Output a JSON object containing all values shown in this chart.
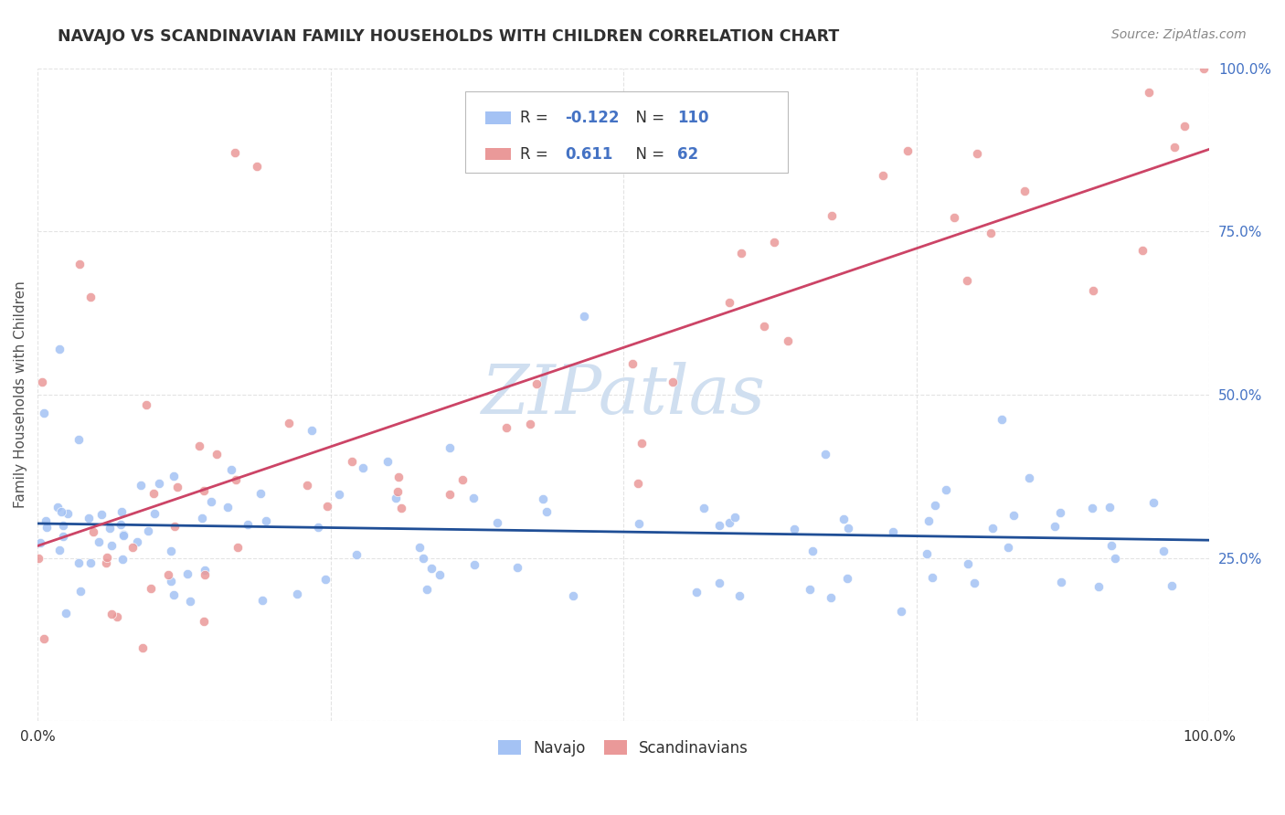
{
  "title": "NAVAJO VS SCANDINAVIAN FAMILY HOUSEHOLDS WITH CHILDREN CORRELATION CHART",
  "source": "Source: ZipAtlas.com",
  "ylabel": "Family Households with Children",
  "navajo_color": "#a4c2f4",
  "scandinavian_color": "#ea9999",
  "navajo_line_color": "#1f4e96",
  "scandinavian_line_color": "#cc4466",
  "watermark_color": "#d0dff0",
  "R_navajo": "-0.122",
  "N_navajo": "110",
  "R_scandinavian": "0.611",
  "N_scandinavian": "62",
  "background_color": "#ffffff",
  "grid_color": "#dddddd",
  "title_color": "#303030",
  "axis_label_color": "#505050",
  "tick_color_y": "#4472c4",
  "legend_text_color": "#4472c4"
}
